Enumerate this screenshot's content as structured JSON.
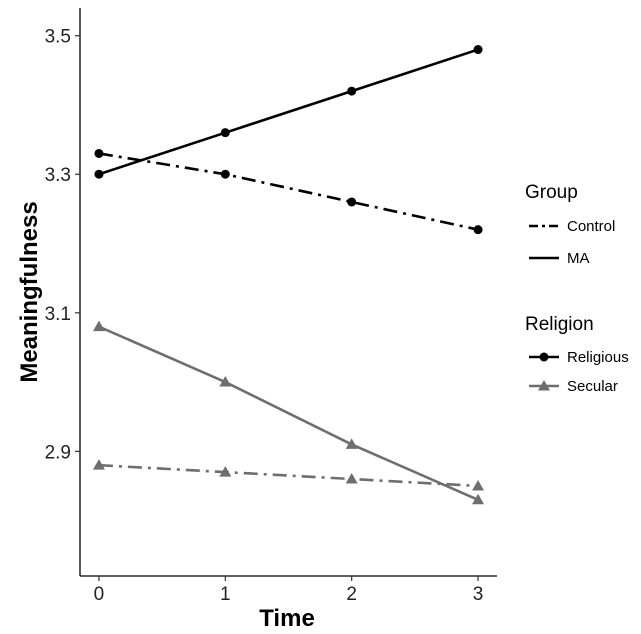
{
  "chart_data": {
    "type": "line",
    "title": "",
    "xlabel": "Time",
    "ylabel": "Meaningfulness",
    "x": [
      0,
      1,
      2,
      3
    ],
    "xticks": [
      "0",
      "1",
      "2",
      "3"
    ],
    "yticks": [
      "2.9",
      "3.1",
      "3.3",
      "3.5"
    ],
    "ytick_values": [
      2.9,
      3.1,
      3.3,
      3.5
    ],
    "xlim": [
      -0.15,
      3.15
    ],
    "ylim": [
      2.72,
      3.54
    ],
    "grid": false,
    "legend_position": "right",
    "series": [
      {
        "group": "MA",
        "religion": "Religious",
        "values": [
          3.3,
          3.36,
          3.42,
          3.48
        ],
        "color": "#000000",
        "linestyle": "solid",
        "marker": "circle"
      },
      {
        "group": "Control",
        "religion": "Religious",
        "values": [
          3.33,
          3.3,
          3.26,
          3.22
        ],
        "color": "#000000",
        "linestyle": "dashdot",
        "marker": "circle"
      },
      {
        "group": "MA",
        "religion": "Secular",
        "values": [
          3.08,
          3.0,
          2.91,
          2.83
        ],
        "color": "#6e6e6e",
        "linestyle": "solid",
        "marker": "triangle"
      },
      {
        "group": "Control",
        "religion": "Secular",
        "values": [
          2.88,
          2.87,
          2.86,
          2.85
        ],
        "color": "#6e6e6e",
        "linestyle": "dashdot",
        "marker": "triangle"
      }
    ],
    "legends": [
      {
        "title": "Group",
        "entries": [
          {
            "label": "Control",
            "linestyle": "dashdot",
            "marker": "none",
            "color": "#000000"
          },
          {
            "label": "MA",
            "linestyle": "solid",
            "marker": "none",
            "color": "#000000"
          }
        ]
      },
      {
        "title": "Religion",
        "entries": [
          {
            "label": "Religious",
            "linestyle": "solid",
            "marker": "circle",
            "color": "#000000"
          },
          {
            "label": "Secular",
            "linestyle": "solid",
            "marker": "triangle",
            "color": "#6e6e6e"
          }
        ]
      }
    ]
  }
}
